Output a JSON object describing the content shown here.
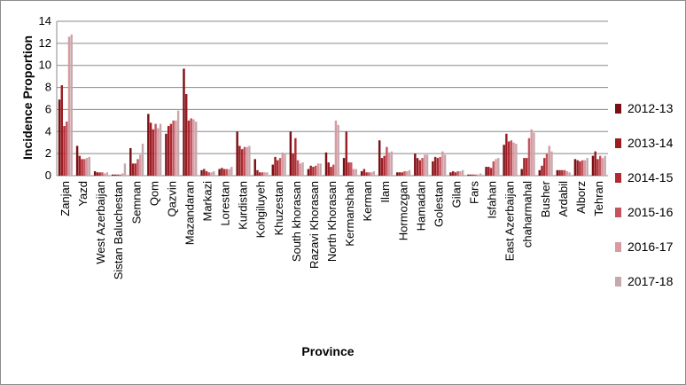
{
  "chart_data": {
    "type": "bar",
    "title": "",
    "xlabel": "Province",
    "ylabel": "Incidence  Proportion",
    "ylim": [
      0,
      14
    ],
    "yticks": [
      0,
      2,
      4,
      6,
      8,
      10,
      12,
      14
    ],
    "grid": true,
    "legend_position": "right",
    "categories": [
      "Zanjan",
      "Yazd",
      "West Azerbaijan",
      "Sistan Baluchestan",
      "Semnan",
      "Qom",
      "Qazvin",
      "Mazandaran",
      "Markazi",
      "Lorestan",
      "Kurdistan",
      "Kohgiluyeh",
      "Khuzestan",
      "South khorasan",
      "Razavi Khorasan",
      "North Khorasan",
      "Kermanshah",
      "Kerman",
      "Ilam",
      "Hormozgan",
      "Hamadan",
      "Golestan",
      "Gilan",
      "Fars",
      "Isfahan",
      "East Azerbaijan",
      "chaharmahal",
      "Busher",
      "Ardabil",
      "Alborz",
      "Tehran"
    ],
    "series": [
      {
        "name": "2012-13",
        "color": "#7a1016",
        "values": [
          6.9,
          2.7,
          0.4,
          0.1,
          2.5,
          5.6,
          3.8,
          9.7,
          0.5,
          0.6,
          4.0,
          1.5,
          1.0,
          4.0,
          0.6,
          2.1,
          1.6,
          0.4,
          3.2,
          0.3,
          2.0,
          1.3,
          0.3,
          0.1,
          0.8,
          2.8,
          0.6,
          0.5,
          0.5,
          1.5,
          1.8
        ]
      },
      {
        "name": "2013-14",
        "color": "#9b1c22",
        "values": [
          8.2,
          1.8,
          0.3,
          0.1,
          1.1,
          4.8,
          4.5,
          7.4,
          0.6,
          0.7,
          2.7,
          0.5,
          1.7,
          2.0,
          0.9,
          1.2,
          4.0,
          0.6,
          1.6,
          0.3,
          1.6,
          1.7,
          0.4,
          0.1,
          0.8,
          3.8,
          1.6,
          0.9,
          0.5,
          1.4,
          2.2
        ]
      },
      {
        "name": "2014-15",
        "color": "#b02a30",
        "values": [
          4.5,
          1.5,
          0.3,
          0.1,
          1.1,
          4.2,
          4.7,
          5.0,
          0.4,
          0.6,
          2.4,
          0.3,
          1.4,
          3.4,
          0.8,
          0.8,
          1.2,
          0.3,
          1.8,
          0.3,
          1.4,
          1.6,
          0.3,
          0.1,
          0.7,
          3.1,
          1.6,
          1.6,
          0.5,
          1.3,
          1.5
        ]
      },
      {
        "name": "2015-16",
        "color": "#c05560",
        "values": [
          4.9,
          1.5,
          0.3,
          0.1,
          1.5,
          4.7,
          5.0,
          5.2,
          0.3,
          0.6,
          2.6,
          0.3,
          1.6,
          1.4,
          0.9,
          1.0,
          1.2,
          0.3,
          2.6,
          0.4,
          1.6,
          1.7,
          0.4,
          0.1,
          1.3,
          3.2,
          3.4,
          2.0,
          0.5,
          1.4,
          1.8
        ]
      },
      {
        "name": "2016-17",
        "color": "#d99aa2",
        "values": [
          12.6,
          1.6,
          0.2,
          0.2,
          1.9,
          4.3,
          5.0,
          5.1,
          0.3,
          0.6,
          2.6,
          0.3,
          2.1,
          1.1,
          1.1,
          5.0,
          0.6,
          0.3,
          2.1,
          0.4,
          1.9,
          2.2,
          0.4,
          0.1,
          1.5,
          3.0,
          4.2,
          2.7,
          0.4,
          1.4,
          1.6
        ]
      },
      {
        "name": "2017-18",
        "color": "#c6a9ad",
        "values": [
          12.8,
          1.7,
          0.3,
          1.1,
          2.9,
          4.7,
          5.9,
          4.9,
          0.4,
          0.8,
          2.7,
          0.3,
          2.0,
          1.2,
          1.1,
          4.6,
          0.6,
          0.4,
          2.2,
          0.5,
          1.9,
          1.9,
          0.5,
          0.2,
          1.6,
          2.9,
          3.9,
          2.2,
          0.3,
          1.6,
          1.8
        ]
      }
    ]
  }
}
